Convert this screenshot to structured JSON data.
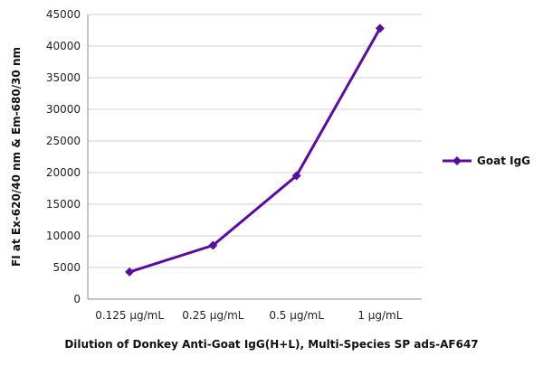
{
  "chart_data": {
    "type": "line",
    "title": "",
    "xlabel": "Dilution of Donkey Anti-Goat IgG(H+L), Multi-Species SP ads-AF647",
    "ylabel": "FI at Ex-620/40 nm & Em-680/30 nm",
    "categories": [
      "0.125 µg/mL",
      "0.25 µg/mL",
      "0.5 µg/mL",
      "1 µg/mL"
    ],
    "ylim": [
      0,
      45000
    ],
    "yticks": [
      0,
      5000,
      10000,
      15000,
      20000,
      25000,
      30000,
      35000,
      40000,
      45000
    ],
    "grid": "horizontal",
    "legend_position": "right",
    "series": [
      {
        "name": "Goat IgG",
        "color": "#5b0aa5",
        "values": [
          4300,
          8500,
          19500,
          42800
        ]
      }
    ]
  }
}
